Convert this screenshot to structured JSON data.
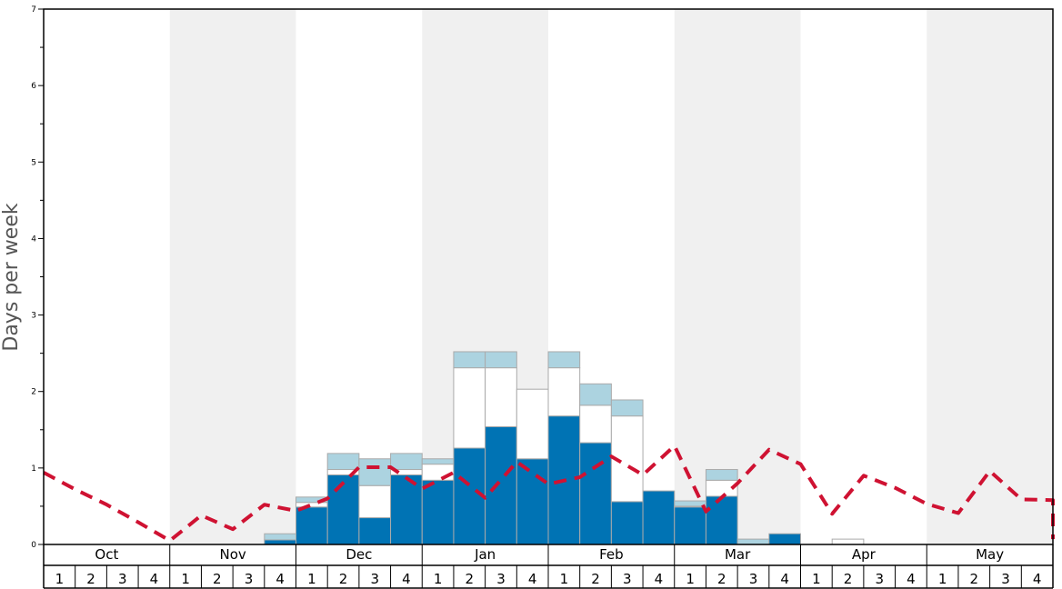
{
  "chart_data": {
    "type": "bar",
    "ylabel": "Days per week",
    "ylim": [
      0,
      7
    ],
    "y_ticks": [
      "0",
      "1",
      "2",
      "3",
      "4",
      "5",
      "6",
      "7"
    ],
    "months": [
      "Oct",
      "Nov",
      "Dec",
      "Jan",
      "Feb",
      "Mar",
      "Apr",
      "May"
    ],
    "week_labels": [
      "1",
      "2",
      "3",
      "4"
    ],
    "colors": {
      "blue": "#0073b4",
      "white": "#ffffff",
      "light_blue": "#acd3e0",
      "line": "#cf1232",
      "shade": "#f0f0f0"
    },
    "stack_order": [
      "blue",
      "white",
      "light_blue"
    ],
    "bars": [
      {
        "blue": 0,
        "white": 0,
        "light_blue": 0
      },
      {
        "blue": 0,
        "white": 0,
        "light_blue": 0
      },
      {
        "blue": 0,
        "white": 0,
        "light_blue": 0
      },
      {
        "blue": 0,
        "white": 0,
        "light_blue": 0
      },
      {
        "blue": 0,
        "white": 0,
        "light_blue": 0
      },
      {
        "blue": 0,
        "white": 0,
        "light_blue": 0
      },
      {
        "blue": 0,
        "white": 0,
        "light_blue": 0
      },
      {
        "blue": 0.06,
        "white": 0,
        "light_blue": 0.08
      },
      {
        "blue": 0.49,
        "white": 0.06,
        "light_blue": 0.07
      },
      {
        "blue": 0.91,
        "white": 0.07,
        "light_blue": 0.21
      },
      {
        "blue": 0.35,
        "white": 0.42,
        "light_blue": 0.35
      },
      {
        "blue": 0.91,
        "white": 0.07,
        "light_blue": 0.21
      },
      {
        "blue": 0.84,
        "white": 0.21,
        "light_blue": 0.07
      },
      {
        "blue": 1.26,
        "white": 1.05,
        "light_blue": 0.21
      },
      {
        "blue": 1.54,
        "white": 0.77,
        "light_blue": 0.21
      },
      {
        "blue": 1.12,
        "white": 0.91,
        "light_blue": 0
      },
      {
        "blue": 1.68,
        "white": 0.63,
        "light_blue": 0.21
      },
      {
        "blue": 1.33,
        "white": 0.49,
        "light_blue": 0.28
      },
      {
        "blue": 0.56,
        "white": 1.12,
        "light_blue": 0.21
      },
      {
        "blue": 0.7,
        "white": 0,
        "light_blue": 0
      },
      {
        "blue": 0.49,
        "white": 0.01,
        "light_blue": 0.07
      },
      {
        "blue": 0.63,
        "white": 0.21,
        "light_blue": 0.14
      },
      {
        "blue": 0,
        "white": 0,
        "light_blue": 0.07
      },
      {
        "blue": 0.14,
        "white": 0,
        "light_blue": 0
      },
      {
        "blue": 0,
        "white": 0,
        "light_blue": 0
      },
      {
        "blue": 0,
        "white": 0.07,
        "light_blue": 0
      },
      {
        "blue": 0,
        "white": 0,
        "light_blue": 0
      },
      {
        "blue": 0,
        "white": 0,
        "light_blue": 0
      },
      {
        "blue": 0,
        "white": 0,
        "light_blue": 0
      },
      {
        "blue": 0,
        "white": 0,
        "light_blue": 0
      },
      {
        "blue": 0,
        "white": 0,
        "light_blue": 0
      },
      {
        "blue": 0,
        "white": 0,
        "light_blue": 0
      }
    ],
    "line_values": [
      0.94,
      0.72,
      0.52,
      0.29,
      0.05,
      0.38,
      0.2,
      0.52,
      0.44,
      0.6,
      1.01,
      1.01,
      0.73,
      0.94,
      0.61,
      1.08,
      0.79,
      0.88,
      1.15,
      0.91,
      1.29,
      0.43,
      0.8,
      1.24,
      1.05,
      0.4,
      0.9,
      0.74,
      0.53,
      0.41,
      0.96,
      0.59,
      0.58,
      0.07
    ]
  }
}
